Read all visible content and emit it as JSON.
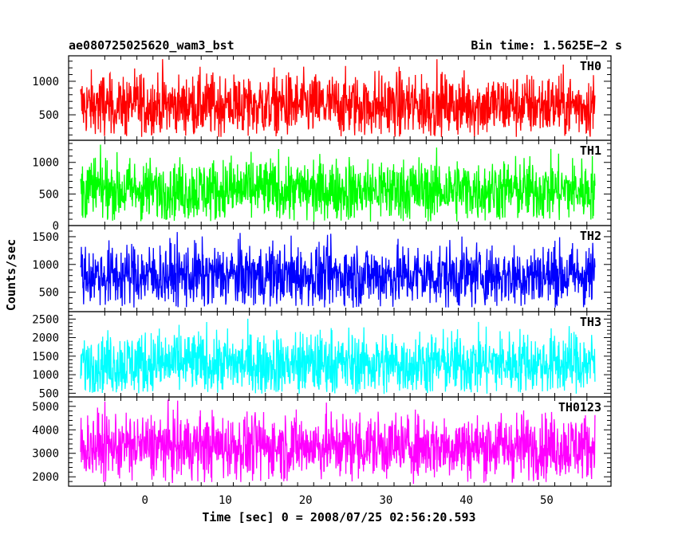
{
  "header": {
    "left_title": "ae080725025620_wam3_bst",
    "right_title": "Bin time: 1.5625E−2 s"
  },
  "axes": {
    "ylabel": "Counts/sec",
    "xlabel": "Time [sec] 0 = 2008/07/25 02:56:20.593"
  },
  "chart_data": {
    "type": "line",
    "x_range": [
      -8,
      56
    ],
    "xlim": [
      -9.5,
      58
    ],
    "x_ticks": [
      0,
      10,
      20,
      30,
      40,
      50
    ],
    "panels": [
      {
        "name": "TH0",
        "color": "#ff0000",
        "ylim": [
          120,
          1380
        ],
        "y_ticks": [
          500,
          1000
        ],
        "approx_mean": 640,
        "approx_min": 160,
        "approx_max": 1380
      },
      {
        "name": "TH1",
        "color": "#00ff00",
        "ylim": [
          0,
          1350
        ],
        "y_ticks": [
          0,
          500,
          1000
        ],
        "approx_mean": 560,
        "approx_min": 60,
        "approx_max": 1350
      },
      {
        "name": "TH2",
        "color": "#0000ff",
        "ylim": [
          150,
          1700
        ],
        "y_ticks": [
          500,
          1000,
          1500
        ],
        "approx_mean": 800,
        "approx_min": 220,
        "approx_max": 1700
      },
      {
        "name": "TH3",
        "color": "#00ffff",
        "ylim": [
          400,
          2700
        ],
        "y_ticks": [
          500,
          1000,
          1500,
          2000,
          2500
        ],
        "approx_mean": 1300,
        "approx_min": 480,
        "approx_max": 2700
      },
      {
        "name": "TH0123",
        "color": "#ff00ff",
        "ylim": [
          1600,
          5400
        ],
        "y_ticks": [
          2000,
          3000,
          4000,
          5000
        ],
        "approx_mean": 3300,
        "approx_min": 1700,
        "approx_max": 5300
      }
    ]
  }
}
